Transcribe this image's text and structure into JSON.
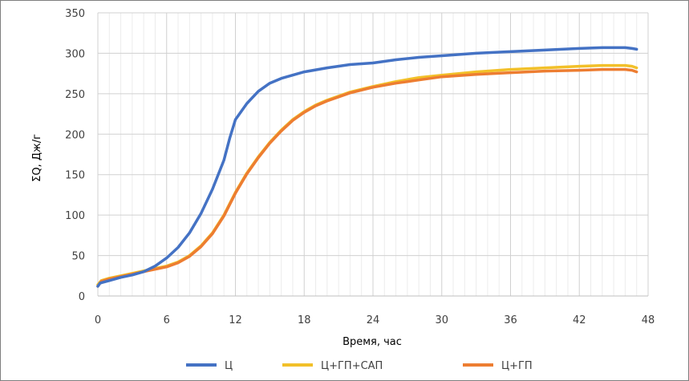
{
  "chart_data": {
    "type": "line",
    "title": "",
    "xlabel": "Время, час",
    "ylabel": "ΣQ, Дж/г",
    "xlim": [
      0,
      48
    ],
    "ylim": [
      0,
      350
    ],
    "x_ticks": [
      0,
      6,
      12,
      18,
      24,
      30,
      36,
      42,
      48
    ],
    "y_ticks": [
      0,
      50,
      100,
      150,
      200,
      250,
      300,
      350
    ],
    "x_tick_labels": [
      "0",
      "6",
      "12",
      "18",
      "24",
      "30",
      "36",
      "42",
      "48"
    ],
    "y_tick_labels": [
      "0",
      "50",
      "100",
      "150",
      "200",
      "250",
      "300",
      "350"
    ],
    "minor_x_step": 1,
    "grid": true,
    "legend_position": "bottom",
    "series": [
      {
        "name": "Ц",
        "color": "#4472C4",
        "points": [
          [
            0,
            12
          ],
          [
            0.2,
            16
          ],
          [
            1,
            19
          ],
          [
            2,
            23
          ],
          [
            3,
            26
          ],
          [
            4,
            30
          ],
          [
            5,
            37
          ],
          [
            6,
            47
          ],
          [
            7,
            60
          ],
          [
            8,
            78
          ],
          [
            9,
            102
          ],
          [
            10,
            132
          ],
          [
            11,
            168
          ],
          [
            11.5,
            195
          ],
          [
            12,
            218
          ],
          [
            13,
            238
          ],
          [
            14,
            253
          ],
          [
            15,
            263
          ],
          [
            16,
            269
          ],
          [
            18,
            277
          ],
          [
            20,
            282
          ],
          [
            22,
            286
          ],
          [
            24,
            288
          ],
          [
            26,
            292
          ],
          [
            28,
            295
          ],
          [
            30,
            297
          ],
          [
            33,
            300
          ],
          [
            36,
            302
          ],
          [
            39,
            304
          ],
          [
            42,
            306
          ],
          [
            44,
            307
          ],
          [
            46,
            307
          ],
          [
            46.6,
            306
          ],
          [
            47,
            305
          ]
        ]
      },
      {
        "name": "Ц+ГП+САП",
        "color": "#F2C029",
        "points": [
          [
            0,
            14
          ],
          [
            0.3,
            19
          ],
          [
            1,
            22
          ],
          [
            2,
            25
          ],
          [
            3,
            28
          ],
          [
            4,
            31
          ],
          [
            5,
            34
          ],
          [
            6,
            37
          ],
          [
            7,
            42
          ],
          [
            8,
            50
          ],
          [
            9,
            62
          ],
          [
            10,
            78
          ],
          [
            11,
            100
          ],
          [
            12,
            128
          ],
          [
            13,
            152
          ],
          [
            14,
            172
          ],
          [
            15,
            190
          ],
          [
            16,
            205
          ],
          [
            17,
            218
          ],
          [
            18,
            228
          ],
          [
            19,
            236
          ],
          [
            20,
            242
          ],
          [
            22,
            252
          ],
          [
            24,
            259
          ],
          [
            26,
            265
          ],
          [
            28,
            270
          ],
          [
            30,
            273
          ],
          [
            33,
            277
          ],
          [
            36,
            280
          ],
          [
            39,
            282
          ],
          [
            42,
            284
          ],
          [
            44,
            285
          ],
          [
            46,
            285
          ],
          [
            46.6,
            284
          ],
          [
            47,
            282
          ]
        ]
      },
      {
        "name": "Ц+ГП",
        "color": "#ED7D31",
        "points": [
          [
            0,
            12
          ],
          [
            0.3,
            18
          ],
          [
            1,
            21
          ],
          [
            2,
            24
          ],
          [
            3,
            27
          ],
          [
            4,
            30
          ],
          [
            5,
            33
          ],
          [
            6,
            36
          ],
          [
            7,
            41
          ],
          [
            8,
            49
          ],
          [
            9,
            61
          ],
          [
            10,
            77
          ],
          [
            11,
            99
          ],
          [
            12,
            127
          ],
          [
            13,
            151
          ],
          [
            14,
            171
          ],
          [
            15,
            189
          ],
          [
            16,
            204
          ],
          [
            17,
            217
          ],
          [
            18,
            227
          ],
          [
            19,
            235
          ],
          [
            20,
            241
          ],
          [
            22,
            251
          ],
          [
            24,
            258
          ],
          [
            26,
            263
          ],
          [
            28,
            267
          ],
          [
            30,
            271
          ],
          [
            33,
            274
          ],
          [
            36,
            276
          ],
          [
            39,
            278
          ],
          [
            42,
            279
          ],
          [
            44,
            280
          ],
          [
            46,
            280
          ],
          [
            46.6,
            279
          ],
          [
            47,
            277
          ]
        ]
      }
    ]
  }
}
